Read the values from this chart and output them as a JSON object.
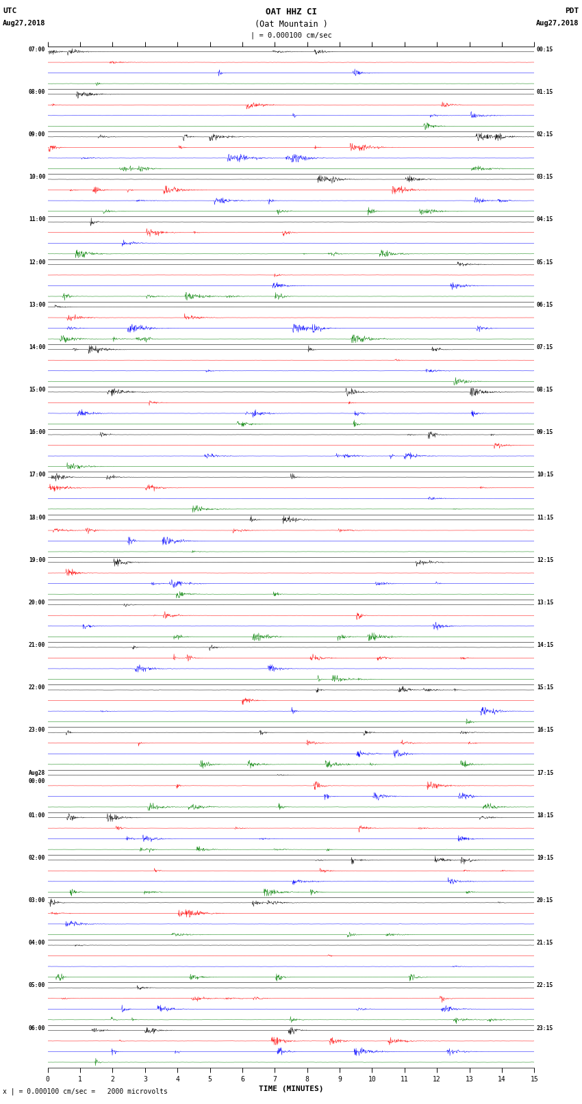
{
  "title_line1": "OAT HHZ CI",
  "title_line2": "(Oat Mountain )",
  "scale_label": "| = 0.000100 cm/sec",
  "bottom_label": "x | = 0.000100 cm/sec =   2000 microvolts",
  "xlabel": "TIME (MINUTES)",
  "fig_width": 8.5,
  "fig_height": 16.13,
  "dpi": 100,
  "colors": [
    "black",
    "red",
    "blue",
    "green"
  ],
  "n_traces_per_hour": 4,
  "x_max": 15,
  "background": "white",
  "left_times_utc": [
    "07:00",
    "08:00",
    "09:00",
    "10:00",
    "11:00",
    "12:00",
    "13:00",
    "14:00",
    "15:00",
    "16:00",
    "17:00",
    "18:00",
    "19:00",
    "20:00",
    "21:00",
    "22:00",
    "23:00",
    "Aug28\n00:00",
    "01:00",
    "02:00",
    "03:00",
    "04:00",
    "05:00",
    "06:00"
  ],
  "right_times_pdt": [
    "00:15",
    "01:15",
    "02:15",
    "03:15",
    "04:15",
    "05:15",
    "06:15",
    "07:15",
    "08:15",
    "09:15",
    "10:15",
    "11:15",
    "12:15",
    "13:15",
    "14:15",
    "15:15",
    "16:15",
    "17:15",
    "18:15",
    "19:15",
    "20:15",
    "21:15",
    "22:15",
    "23:15"
  ],
  "seed": 42
}
